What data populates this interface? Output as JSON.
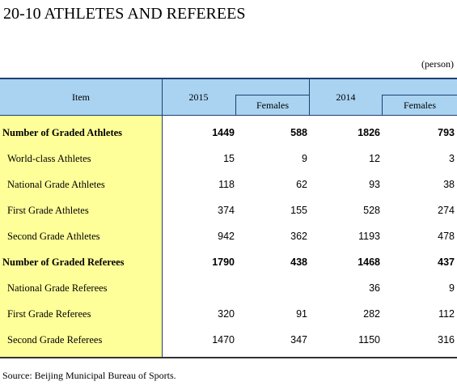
{
  "title": "20-10  ATHLETES AND REFEREES",
  "unit": "(person)",
  "table": {
    "header": {
      "item": "Item",
      "groups": [
        {
          "year": "2015",
          "sub": "Females"
        },
        {
          "year": "2014",
          "sub": "Females"
        }
      ]
    },
    "rows": [
      {
        "item": "Number of Graded Athletes",
        "bold": true,
        "values": [
          1449,
          588,
          1826,
          793
        ]
      },
      {
        "item": "World-class Athletes",
        "bold": false,
        "values": [
          15,
          9,
          12,
          3
        ]
      },
      {
        "item": "National Grade Athletes",
        "bold": false,
        "values": [
          118,
          62,
          93,
          38
        ]
      },
      {
        "item": "First Grade Athletes",
        "bold": false,
        "values": [
          374,
          155,
          528,
          274
        ]
      },
      {
        "item": "Second Grade Athletes",
        "bold": false,
        "values": [
          942,
          362,
          1193,
          478
        ]
      },
      {
        "item": "Number of Graded Referees",
        "bold": true,
        "values": [
          1790,
          438,
          1468,
          437
        ]
      },
      {
        "item": "National Grade Referees",
        "bold": false,
        "values": [
          null,
          null,
          36,
          9
        ]
      },
      {
        "item": "First Grade Referees",
        "bold": false,
        "values": [
          320,
          91,
          282,
          112
        ]
      },
      {
        "item": "Second Grade Referees",
        "bold": false,
        "values": [
          1470,
          347,
          1150,
          316
        ]
      }
    ]
  },
  "source": "Source: Beijing Municipal Bureau of Sports."
}
